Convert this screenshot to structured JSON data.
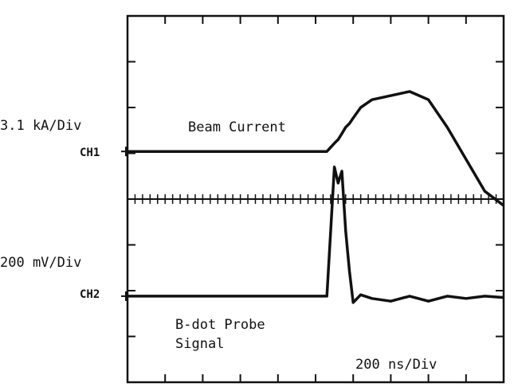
{
  "chart_data": {
    "type": "line",
    "annotations": {
      "ch1_scale": "3.1 kA/Div",
      "ch1_label": "CH1",
      "ch2_scale": "200 mV/Div",
      "ch2_label": "CH2",
      "time_scale": "200 ns/Div"
    },
    "x": [
      0,
      1,
      2,
      3,
      4,
      5,
      5.3,
      5.5,
      5.6,
      5.7,
      5.8,
      5.9,
      6.0,
      6.2,
      6.5,
      7,
      7.5,
      8,
      8.5,
      9,
      9.5,
      10
    ],
    "xlim": [
      0,
      10
    ],
    "ylim": [
      0,
      8
    ],
    "series": [
      {
        "name": "Beam Current",
        "color": "#111111",
        "values": [
          5.04,
          5.04,
          5.04,
          5.04,
          5.04,
          5.04,
          5.04,
          5.22,
          5.3,
          5.43,
          5.57,
          5.65,
          5.77,
          6.0,
          6.17,
          6.26,
          6.35,
          6.17,
          5.57,
          4.87,
          4.17,
          3.86
        ]
      },
      {
        "name": [
          "B-dot Probe",
          "Signal"
        ],
        "color": "#111111",
        "values": [
          1.88,
          1.88,
          1.88,
          1.88,
          1.88,
          1.88,
          1.88,
          4.7,
          4.35,
          4.61,
          3.3,
          2.43,
          1.74,
          1.91,
          1.83,
          1.77,
          1.88,
          1.77,
          1.88,
          1.83,
          1.88,
          1.85
        ]
      }
    ]
  }
}
